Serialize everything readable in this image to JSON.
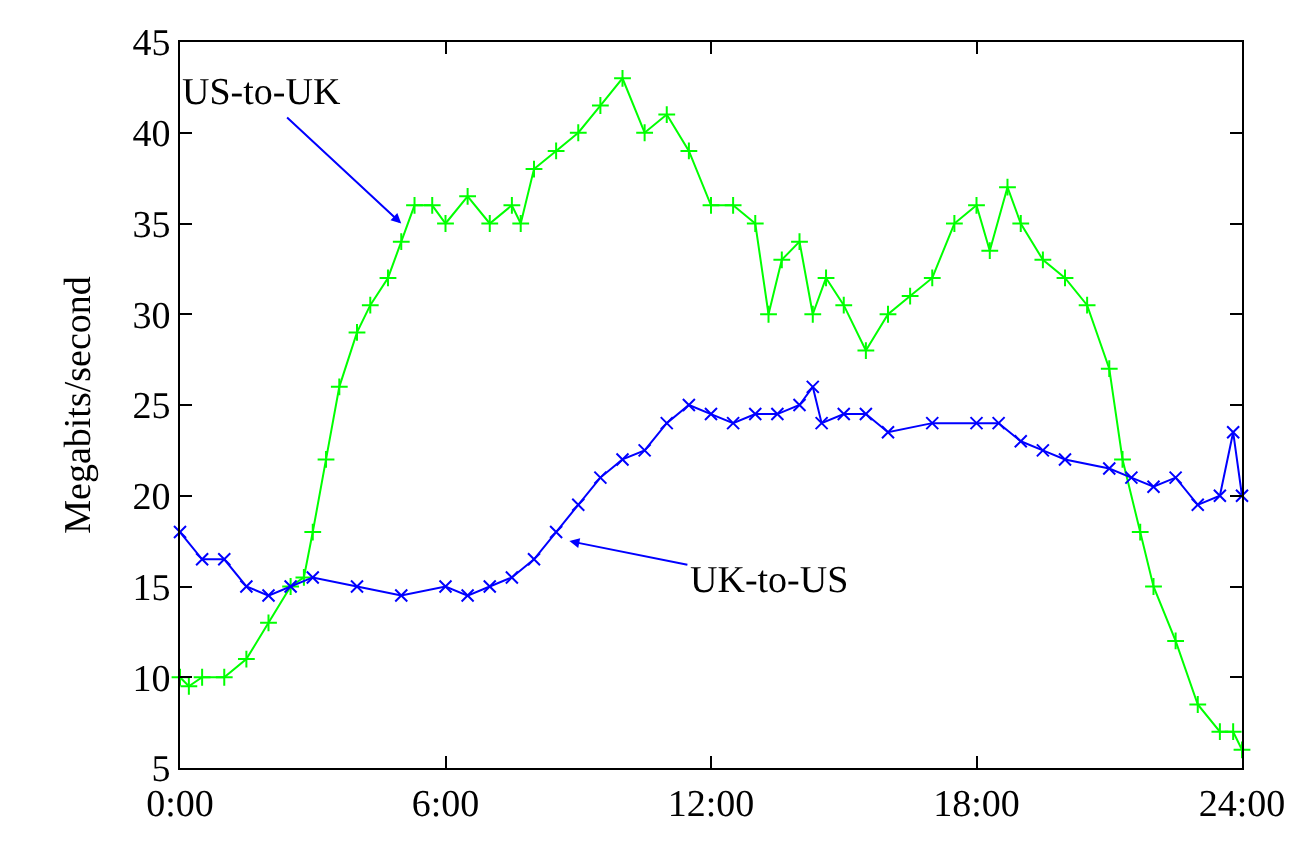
{
  "chart_data": {
    "type": "line",
    "ylabel": "Megabits/second",
    "xlim": [
      0,
      24
    ],
    "xticks": [
      {
        "value": 0,
        "label": "0:00"
      },
      {
        "value": 6,
        "label": "6:00"
      },
      {
        "value": 12,
        "label": "12:00"
      },
      {
        "value": 18,
        "label": "18:00"
      },
      {
        "value": 24,
        "label": "24:00"
      }
    ],
    "ylim": [
      5,
      45
    ],
    "yticks": [
      5,
      10,
      15,
      20,
      25,
      30,
      35,
      40,
      45
    ],
    "series": [
      {
        "color": "#00ff00",
        "marker": "cross",
        "x": [
          0,
          0.2,
          0.5,
          1.0,
          1.5,
          2.0,
          2.5,
          2.8,
          3.0,
          3.3,
          3.6,
          4.0,
          4.3,
          4.7,
          5.0,
          5.3,
          5.7,
          6.0,
          6.5,
          7.0,
          7.5,
          7.7,
          8.0,
          8.5,
          9.0,
          9.5,
          10.0,
          10.5,
          11.0,
          11.5,
          12.0,
          12.5,
          13.0,
          13.3,
          13.6,
          14.0,
          14.3,
          14.6,
          15.0,
          15.5,
          16.0,
          16.5,
          17.0,
          17.5,
          18.0,
          18.3,
          18.7,
          19.0,
          19.5,
          20.0,
          20.5,
          21.0,
          21.3,
          21.7,
          22.0,
          22.5,
          23.0,
          23.5,
          23.8,
          24.0
        ],
        "values": [
          10,
          9.5,
          10,
          10,
          11,
          13,
          15,
          15.5,
          18,
          22,
          26,
          29,
          30.5,
          32,
          34,
          36,
          36,
          35,
          36.5,
          35,
          36,
          35,
          38,
          39,
          40,
          41.5,
          43,
          40,
          41,
          39,
          36,
          36,
          35,
          30,
          33,
          34,
          30,
          32,
          30.5,
          28,
          30,
          31,
          32,
          35,
          36,
          33.5,
          37,
          35,
          33,
          32,
          30.5,
          27,
          22,
          18,
          15,
          12,
          8.5,
          7,
          7,
          6
        ]
      },
      {
        "color": "#0000ff",
        "marker": "x",
        "x": [
          0,
          0.5,
          1.0,
          1.5,
          2.0,
          2.5,
          3.0,
          4.0,
          5.0,
          6.0,
          6.5,
          7.0,
          7.5,
          8.0,
          8.5,
          9.0,
          9.5,
          10.0,
          10.5,
          11.0,
          11.5,
          12.0,
          12.5,
          13.0,
          13.5,
          14.0,
          14.3,
          14.5,
          15.0,
          15.5,
          16.0,
          17.0,
          18.0,
          18.5,
          19.0,
          19.5,
          20.0,
          21.0,
          21.5,
          22.0,
          22.5,
          23.0,
          23.5,
          23.8,
          24.0
        ],
        "values": [
          18,
          16.5,
          16.5,
          15,
          14.5,
          15,
          15.5,
          15,
          14.5,
          15,
          14.5,
          15,
          15.5,
          16.5,
          18,
          19.5,
          21,
          22,
          22.5,
          24,
          25,
          24.5,
          24,
          24.5,
          24.5,
          25,
          26,
          24,
          24.5,
          24.5,
          23.5,
          24,
          24,
          24,
          23,
          22.5,
          22,
          21.5,
          21,
          20.5,
          21,
          19.5,
          20,
          23.5,
          20
        ]
      }
    ],
    "annotations": [
      {
        "text": "US-to-UK",
        "x": 5.0,
        "y": 35
      },
      {
        "text": "UK-to-US",
        "x": 8.8,
        "y": 17.5
      }
    ]
  }
}
